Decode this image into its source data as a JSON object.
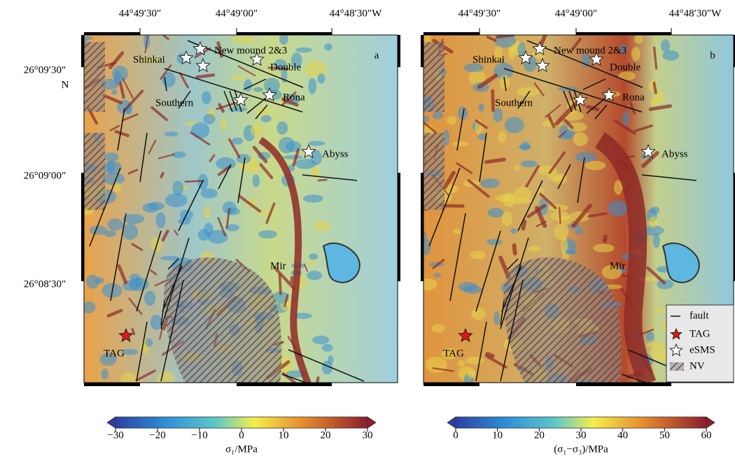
{
  "x_labels": [
    "44°49′30″",
    "44°49′00″",
    "44°48′30″W"
  ],
  "y_labels": [
    "26°09′30″",
    "26°09′00″",
    "26°08′30″"
  ],
  "north": "N",
  "places": [
    "Shinkai",
    "New mound 2&3",
    "Double",
    "Southern",
    "Rona",
    "Abyss",
    "Mir",
    "TAG"
  ],
  "panels": [
    {
      "label": "a",
      "colorbar": {
        "range": [
          -30,
          30
        ],
        "ticks": [
          {
            "value": -30,
            "label": "−30"
          },
          {
            "value": -20,
            "label": "−20"
          },
          {
            "value": -10,
            "label": "−10"
          },
          0,
          10,
          20,
          30
        ],
        "label": "σ₁/MPa"
      }
    },
    {
      "label": "b",
      "colorbar": {
        "range": [
          0,
          60
        ],
        "ticks": [
          0,
          10,
          20,
          30,
          40,
          50,
          60
        ],
        "label": "(σ₁−σ₃)/MPa"
      }
    }
  ],
  "legend": [
    "fault",
    "TAG",
    "eSMS",
    "NV"
  ]
}
